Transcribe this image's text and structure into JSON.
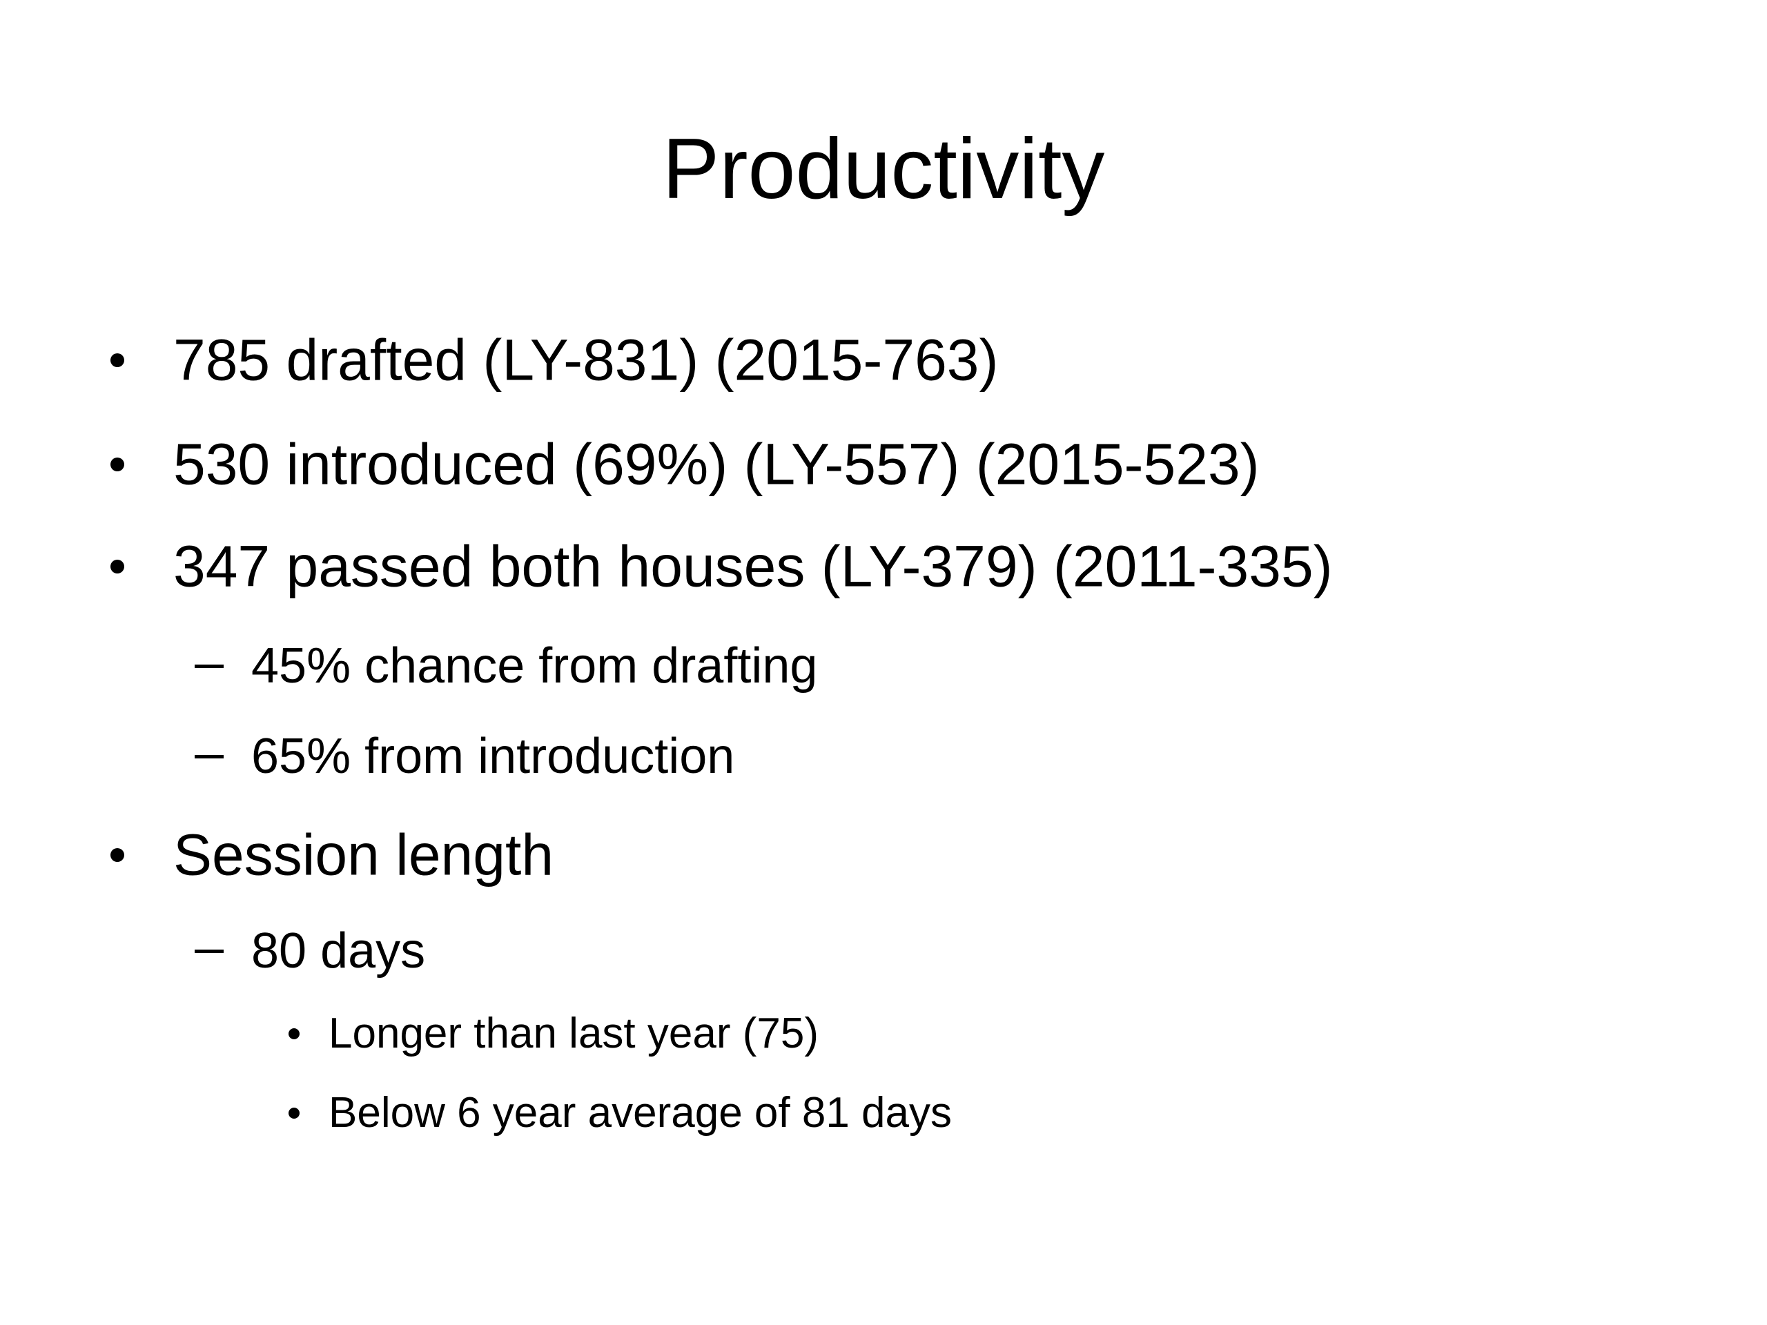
{
  "slide": {
    "title": "Productivity",
    "items": [
      {
        "level": 1,
        "text": "785 drafted  (LY-831) (2015-763)"
      },
      {
        "level": 1,
        "text": "530 introduced (69%) (LY-557) (2015-523)"
      },
      {
        "level": 1,
        "text": "347 passed both houses (LY-379) (2011-335)"
      },
      {
        "level": 2,
        "text": "45% chance from drafting"
      },
      {
        "level": 2,
        "text": "65% from introduction"
      },
      {
        "level": 1,
        "text": "Session length"
      },
      {
        "level": 2,
        "text": "80 days"
      },
      {
        "level": 3,
        "text": "Longer than last year (75)"
      },
      {
        "level": 3,
        "text": "Below 6 year average of 81 days"
      }
    ]
  }
}
